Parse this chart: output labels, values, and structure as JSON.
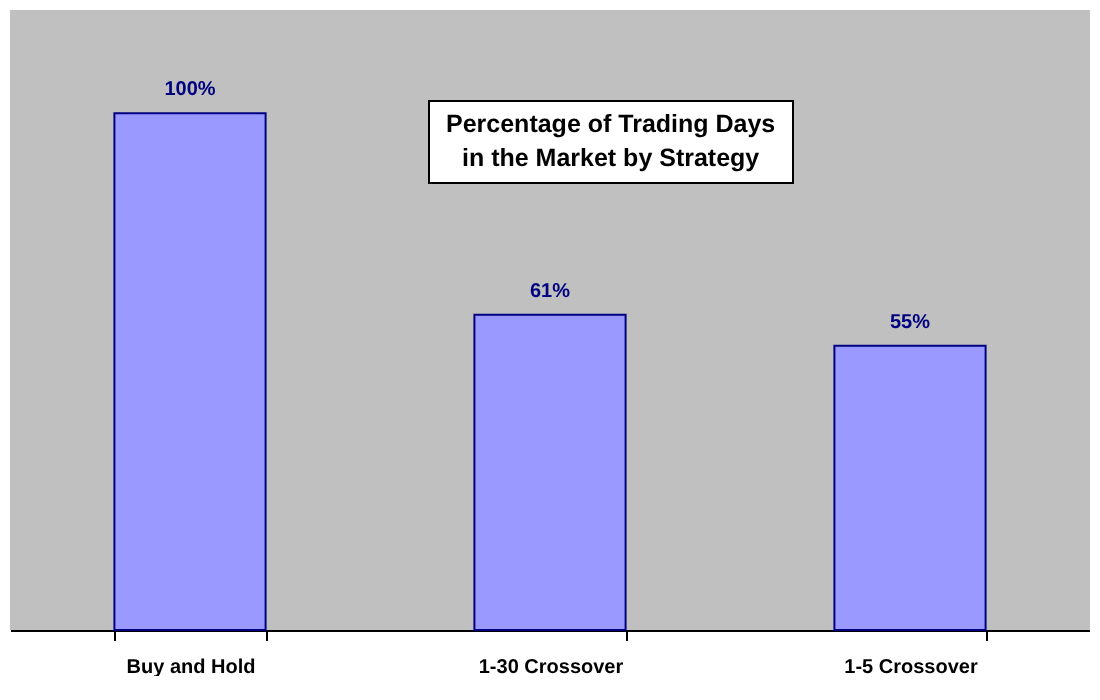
{
  "chart_data": {
    "type": "bar",
    "title": "Percentage of Trading Days\nin the Market by Strategy",
    "categories": [
      "Buy and Hold",
      "1-30 Crossover",
      "1-5 Crossover"
    ],
    "values": [
      100,
      61,
      55
    ],
    "value_labels": [
      "100%",
      "61%",
      "55%"
    ],
    "color": "#9999ff",
    "ylim": [
      0,
      120
    ]
  }
}
